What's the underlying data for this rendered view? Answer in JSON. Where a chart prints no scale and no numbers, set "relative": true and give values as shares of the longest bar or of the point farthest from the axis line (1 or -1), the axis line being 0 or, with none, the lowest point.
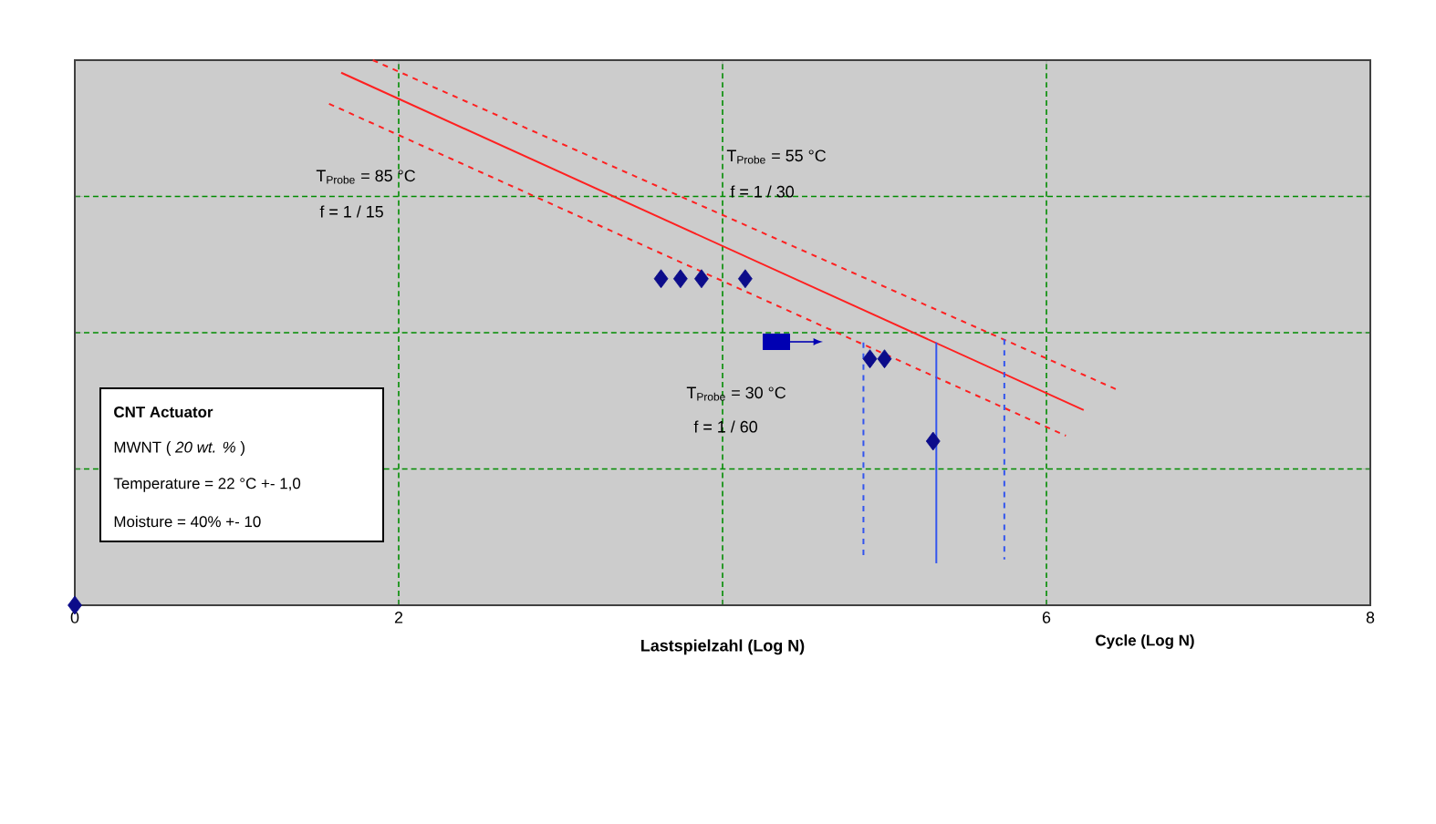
{
  "chart_data": {
    "type": "scatter",
    "relative": true,
    "xlabel": "Lastspielzahl (Log N)",
    "xlim": [
      0,
      8
    ],
    "xticks": [
      0,
      2,
      {
        "value": 4,
        "label": null
      },
      6,
      8
    ],
    "grid": true,
    "annotations": [
      "T$_{Probe}$ = 85 °C",
      "f = 1 / 15",
      "T$_{Probe}$ = 55 °C",
      "f = 1 / 30",
      "T$_{Probe}$ =  30 °C",
      "f = 1 / 60",
      "CNT Actuator",
      "MWNT ( *20 wt. %* )",
      "Temperature = 22 °C +- 1,0",
      "Moisture = 40% +- 10",
      "Cycle (Log N)"
    ],
    "series": [
      {
        "color": "#0c0c8a",
        "marker": "diamond",
        "x": [
          0,
          3.62,
          3.74,
          3.87,
          4.14,
          4.91,
          5.0,
          5.3
        ],
        "values": [
          0,
          0.599,
          0.599,
          0.599,
          0.599,
          0.452,
          0.452,
          0.301
        ]
      },
      {
        "type": "line",
        "color": "#ff2020",
        "line_style": "solid",
        "marker": "none",
        "x": [
          1.645,
          6.23
        ],
        "values": [
          0.977,
          0.358
        ]
      },
      {
        "type": "line",
        "color": "#ff2020",
        "line_style": "dashed",
        "marker": "none",
        "x": [
          1.84,
          6.44
        ],
        "values": [
          1.0,
          0.395
        ]
      },
      {
        "type": "line",
        "color": "#ff2020",
        "line_style": "dashed",
        "marker": "none",
        "x": [
          1.57,
          6.12
        ],
        "values": [
          0.92,
          0.311
        ]
      },
      {
        "type": "line",
        "color": "#3355ee",
        "line_style": "dashed",
        "marker": "none",
        "x": [
          4.87,
          4.87
        ],
        "values": [
          0.482,
          0.084
        ]
      },
      {
        "type": "line",
        "color": "#3355ee",
        "line_style": "solid",
        "marker": "none",
        "x": [
          5.32,
          5.32
        ],
        "values": [
          0.482,
          0.077
        ]
      },
      {
        "type": "line",
        "color": "#3355ee",
        "line_style": "dashed",
        "marker": "none",
        "x": [
          5.74,
          5.74
        ],
        "values": [
          0.488,
          0.084
        ]
      }
    ]
  }
}
